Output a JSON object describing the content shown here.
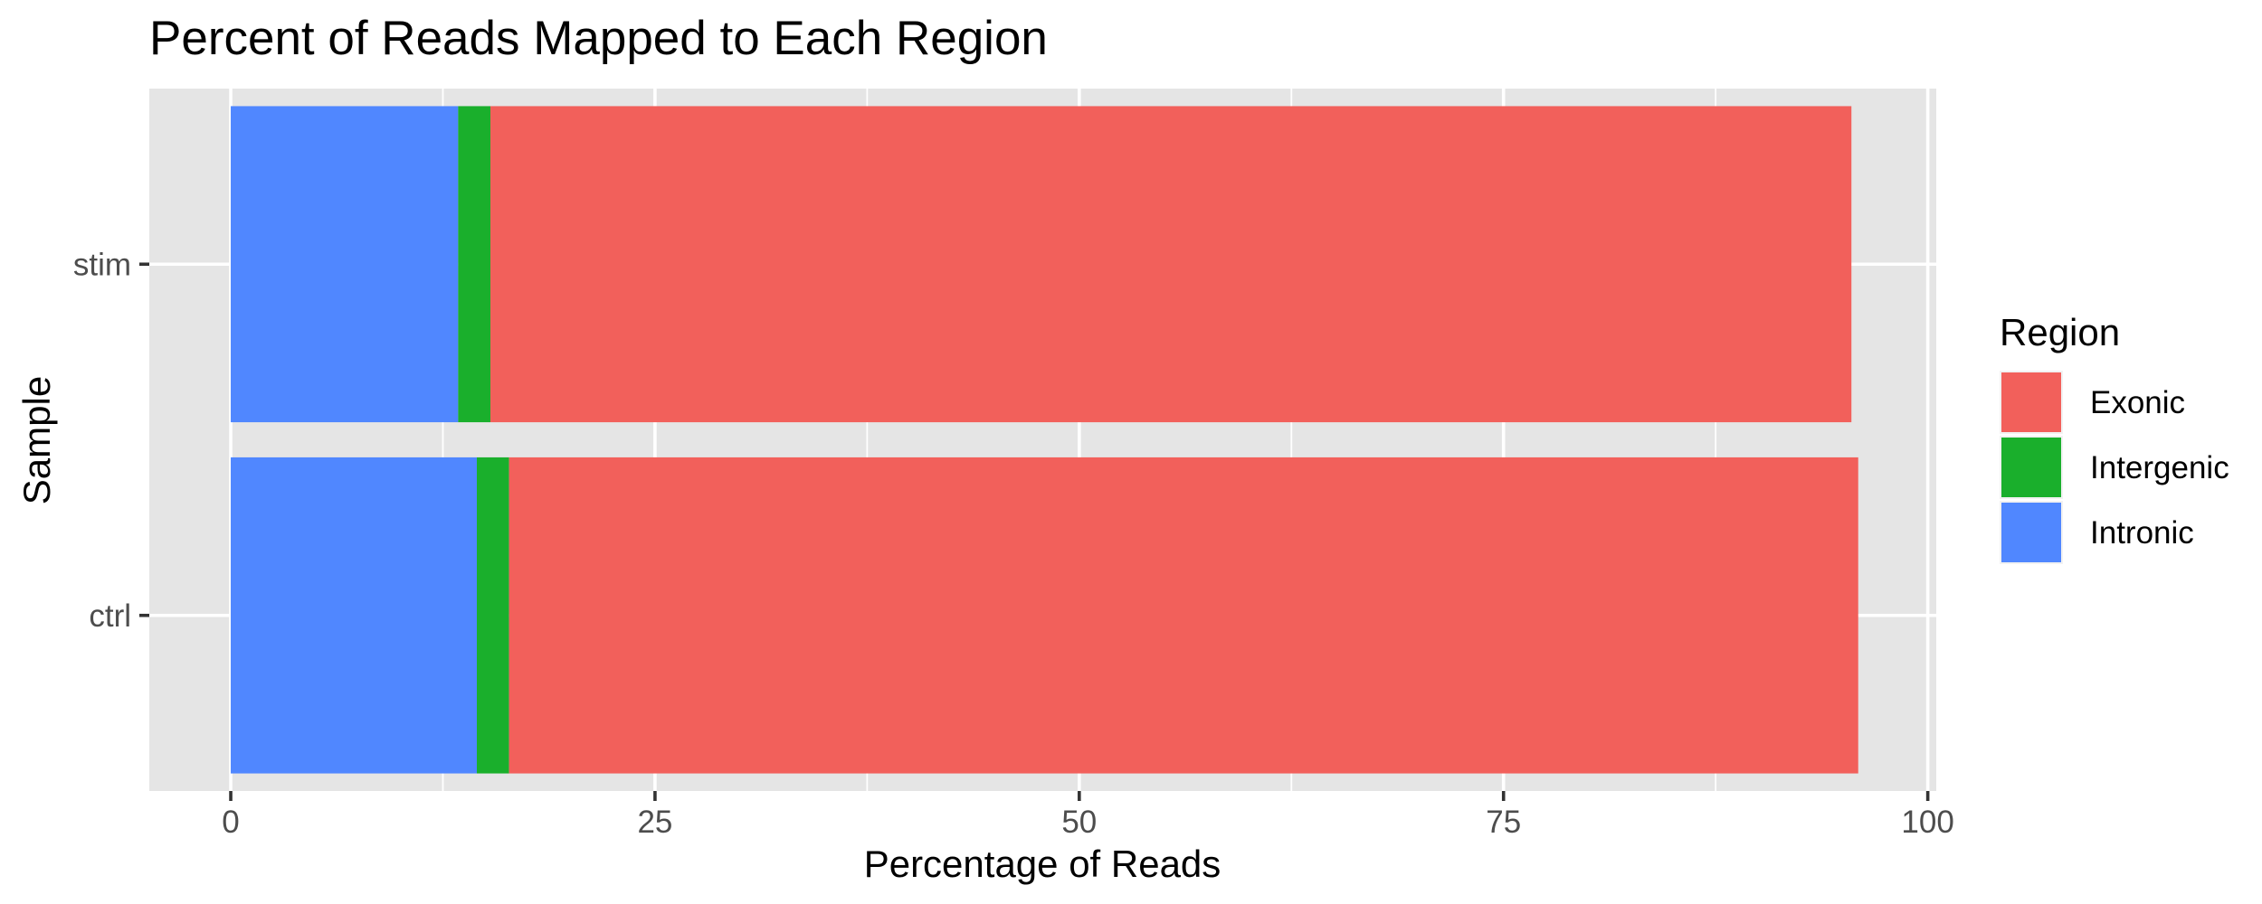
{
  "chart_data": {
    "type": "bar",
    "orientation": "horizontal",
    "stacked": true,
    "title": "Percent of Reads Mapped to Each Region",
    "xlabel": "Percentage of Reads",
    "ylabel": "Sample",
    "xlim": [
      -4.8,
      100.5
    ],
    "xticks": [
      0,
      25,
      50,
      75,
      100
    ],
    "xtick_labels": [
      "0",
      "25",
      "50",
      "75",
      "100"
    ],
    "grid": true,
    "legend_title": "Region",
    "legend_position": "right",
    "categories": [
      "stim",
      "ctrl"
    ],
    "series": [
      {
        "name": "Intronic",
        "color": "#5087FF",
        "values": [
          13.4,
          14.5
        ]
      },
      {
        "name": "Intergenic",
        "color": "#1AAF2C",
        "values": [
          1.9,
          1.9
        ]
      },
      {
        "name": "Exonic",
        "color": "#F2605B",
        "values": [
          80.2,
          79.5
        ]
      }
    ],
    "legend_order": [
      "Exonic",
      "Intergenic",
      "Intronic"
    ]
  }
}
